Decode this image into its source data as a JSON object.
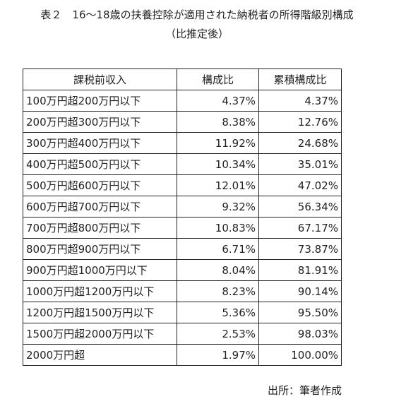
{
  "header": {
    "title": "表２　16〜18歳の扶養控除が適用された納税者の所得階級別構成",
    "subtitle": "（比推定後）"
  },
  "table": {
    "columns": [
      "課税前収入",
      "構成比",
      "累積構成比"
    ],
    "rows": [
      [
        "100万円超200万円以下",
        "4.37%",
        "4.37%"
      ],
      [
        "200万円超300万円以下",
        "8.38%",
        "12.76%"
      ],
      [
        "300万円超400万円以下",
        "11.92%",
        "24.68%"
      ],
      [
        "400万円超500万円以下",
        "10.34%",
        "35.01%"
      ],
      [
        "500万円超600万円以下",
        "12.01%",
        "47.02%"
      ],
      [
        "600万円超700万円以下",
        "9.32%",
        "56.34%"
      ],
      [
        "700万円超800万円以下",
        "10.83%",
        "67.17%"
      ],
      [
        "800万円超900万円以下",
        "6.71%",
        "73.87%"
      ],
      [
        "900万円超1000万円以下",
        "8.04%",
        "81.91%"
      ],
      [
        "1000万円超1200万円以下",
        "8.23%",
        "90.14%"
      ],
      [
        "1200万円超1500万円以下",
        "5.36%",
        "95.50%"
      ],
      [
        "1500万円超2000万円以下",
        "2.53%",
        "98.03%"
      ],
      [
        "2000万円超",
        "1.97%",
        "100.00%"
      ]
    ]
  },
  "source": "出所：筆者作成"
}
